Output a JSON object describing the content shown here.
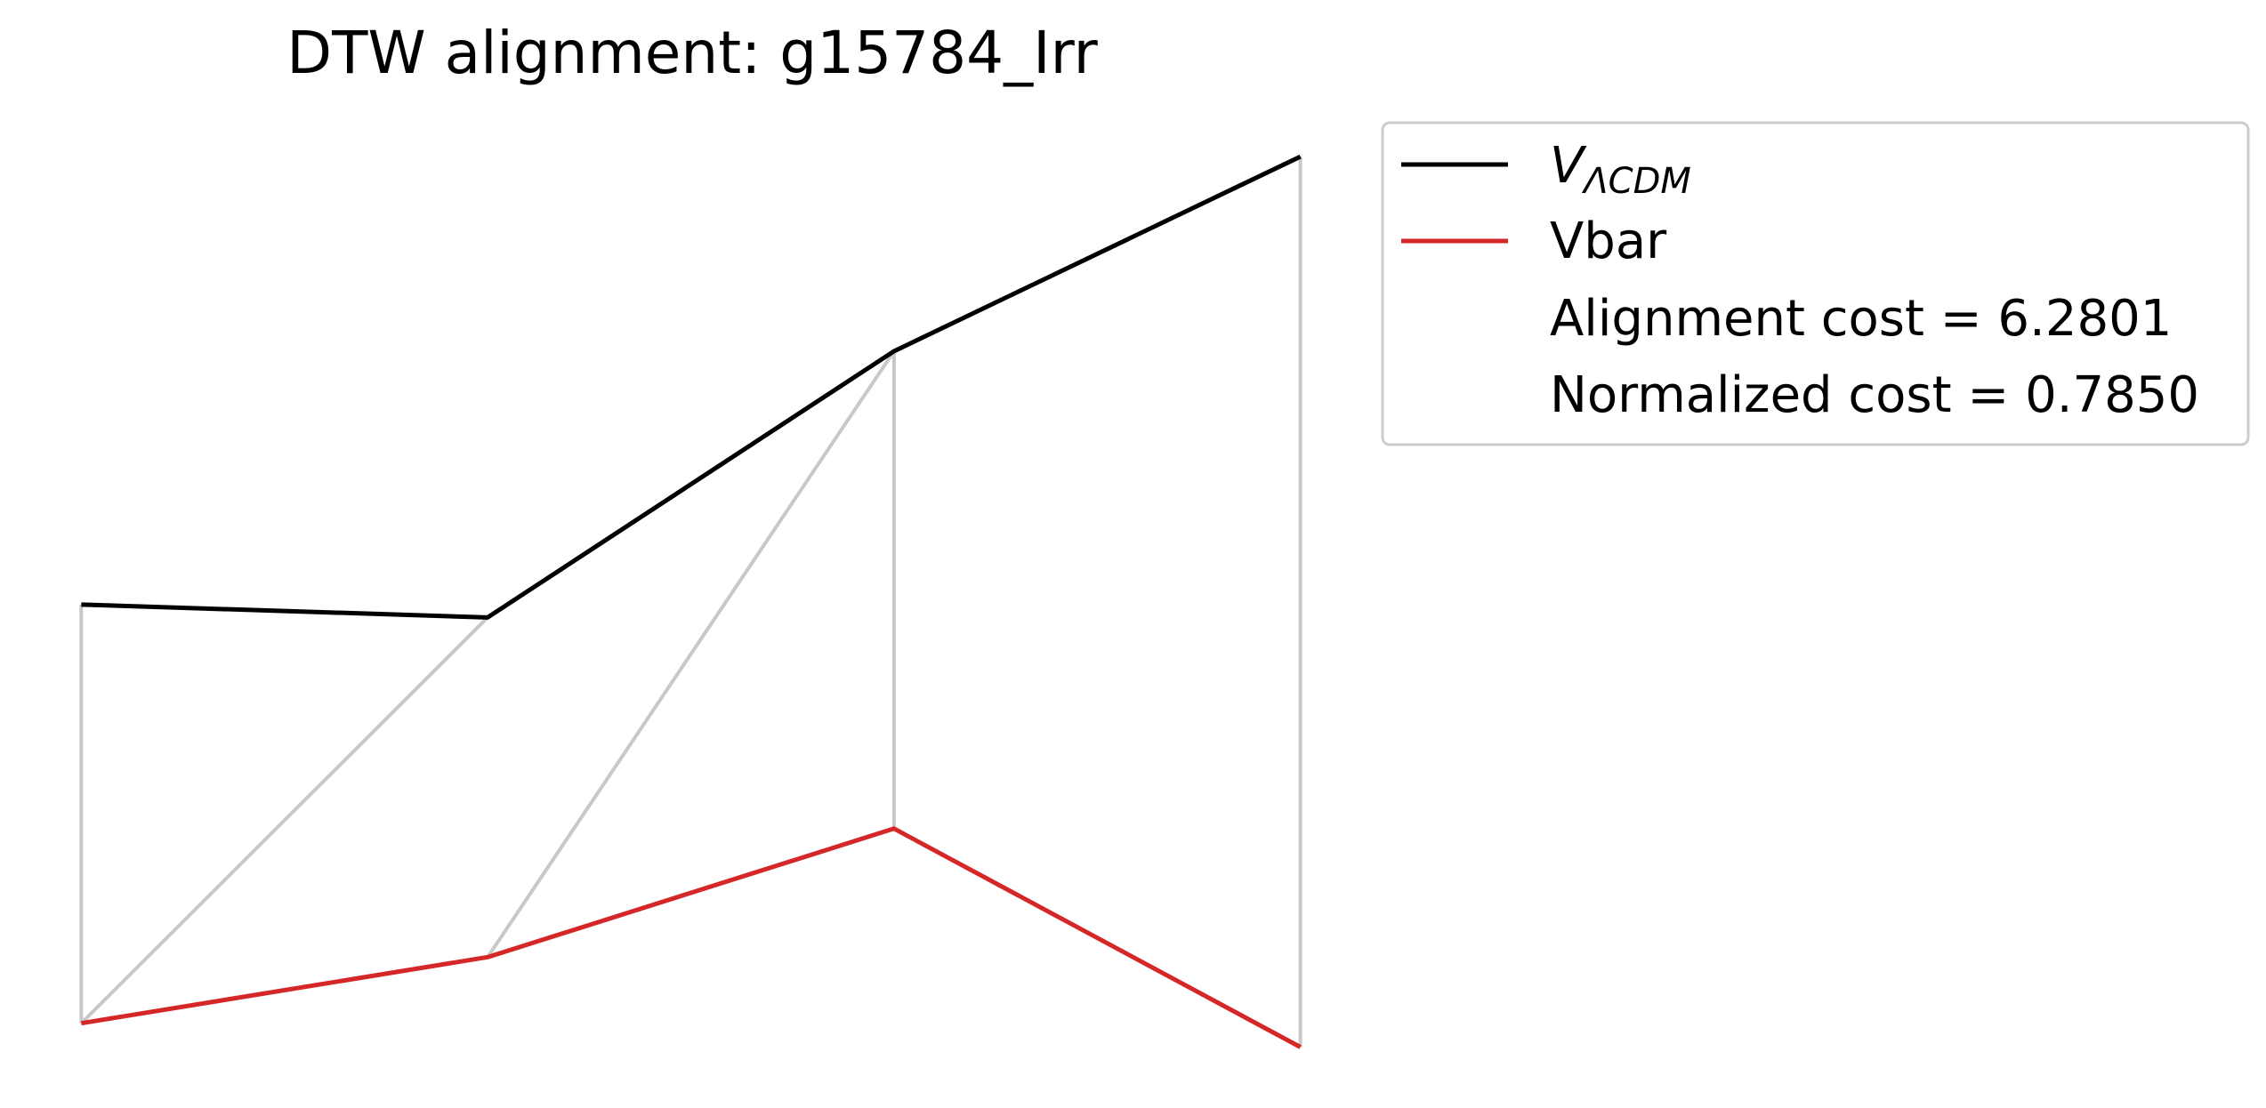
{
  "chart_data": {
    "type": "line",
    "title": "DTW alignment: g15784_Irr",
    "xlabel": "",
    "ylabel": "",
    "axes_visible": false,
    "grid": false,
    "legend_position": "top-right-outside",
    "series": [
      {
        "name": "V_ΛCDM",
        "color": "#000000",
        "x": [
          0,
          1,
          2,
          3
        ],
        "y": [
          0.448,
          0.434,
          0.724,
          0.936
        ]
      },
      {
        "name": "Vbar",
        "color": "#d62728",
        "x": [
          0,
          1,
          2,
          3
        ],
        "y": [
          -0.008,
          0.064,
          0.204,
          -0.034
        ]
      }
    ],
    "alignment_color": "#c8c8c8",
    "alignment_pairs": [
      [
        0,
        0
      ],
      [
        1,
        0
      ],
      [
        2,
        1
      ],
      [
        2,
        2
      ],
      [
        3,
        3
      ]
    ],
    "ylim": [
      -0.08,
      1.0
    ],
    "xlim": [
      -0.2,
      3.2
    ],
    "legend": {
      "series_a_main": "V",
      "series_a_sub": "ΛCDM",
      "series_b": "Vbar",
      "cost_text": "Alignment cost = 6.2801",
      "norm_text": "Normalized cost = 0.7850"
    }
  }
}
